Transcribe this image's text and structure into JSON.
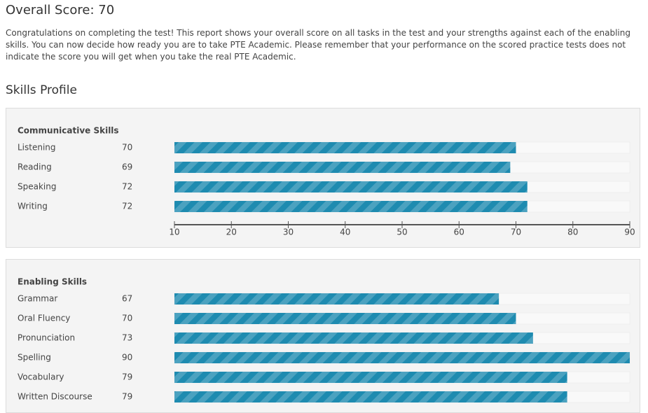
{
  "title": "Overall Score: 70",
  "intro": "Congratulations on completing the test! This report shows your overall score on all tasks in the test and your strengths against each of the enabling skills. You can now decide how ready you are to take PTE Academic. Please remember that your performance on the scored practice tests does not indicate the score you will get when you take the real PTE Academic.",
  "section_title": "Skills Profile",
  "chart_data": [
    {
      "type": "bar",
      "title": "Communicative Skills",
      "categories": [
        "Listening",
        "Reading",
        "Speaking",
        "Writing"
      ],
      "values": [
        70,
        69,
        72,
        72
      ],
      "color": "#1e8bb0",
      "xlim": [
        10,
        90
      ],
      "xticks": [
        10,
        20,
        30,
        40,
        50,
        60,
        70,
        80,
        90
      ]
    },
    {
      "type": "bar",
      "title": "Enabling Skills",
      "categories": [
        "Grammar",
        "Oral Fluency",
        "Pronunciation",
        "Spelling",
        "Vocabulary",
        "Written Discourse"
      ],
      "values": [
        67,
        70,
        73,
        90,
        79,
        79
      ],
      "color": "#1e8bb0",
      "xlim": [
        10,
        90
      ]
    }
  ]
}
